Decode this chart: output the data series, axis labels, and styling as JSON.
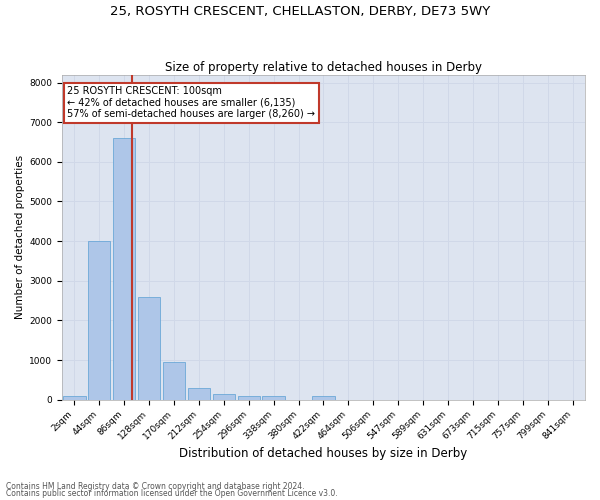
{
  "title": "25, ROSYTH CRESCENT, CHELLASTON, DERBY, DE73 5WY",
  "subtitle": "Size of property relative to detached houses in Derby",
  "xlabel": "Distribution of detached houses by size in Derby",
  "ylabel": "Number of detached properties",
  "footnote1": "Contains HM Land Registry data © Crown copyright and database right 2024.",
  "footnote2": "Contains public sector information licensed under the Open Government Licence v3.0.",
  "bin_labels": [
    "2sqm",
    "44sqm",
    "86sqm",
    "128sqm",
    "170sqm",
    "212sqm",
    "254sqm",
    "296sqm",
    "338sqm",
    "380sqm",
    "422sqm",
    "464sqm",
    "506sqm",
    "547sqm",
    "589sqm",
    "631sqm",
    "673sqm",
    "715sqm",
    "757sqm",
    "799sqm",
    "841sqm"
  ],
  "bar_values": [
    100,
    4000,
    6600,
    2600,
    950,
    300,
    130,
    100,
    80,
    0,
    100,
    0,
    0,
    0,
    0,
    0,
    0,
    0,
    0,
    0,
    0
  ],
  "bar_color": "#aec6e8",
  "bar_edgecolor": "#5a9fd4",
  "vline_x": 2.333,
  "vline_color": "#c0392b",
  "annotation_line1": "25 ROSYTH CRESCENT: 100sqm",
  "annotation_line2": "← 42% of detached houses are smaller (6,135)",
  "annotation_line3": "57% of semi-detached houses are larger (8,260) →",
  "annotation_box_color": "white",
  "annotation_box_edgecolor": "#c0392b",
  "ylim": [
    0,
    8200
  ],
  "yticks": [
    0,
    1000,
    2000,
    3000,
    4000,
    5000,
    6000,
    7000,
    8000
  ],
  "grid_color": "#d0d8e8",
  "bg_color": "#dde4f0",
  "title_fontsize": 9.5,
  "subtitle_fontsize": 8.5,
  "ylabel_fontsize": 7.5,
  "xlabel_fontsize": 8.5,
  "tick_fontsize": 6.5,
  "annot_fontsize": 7.0
}
